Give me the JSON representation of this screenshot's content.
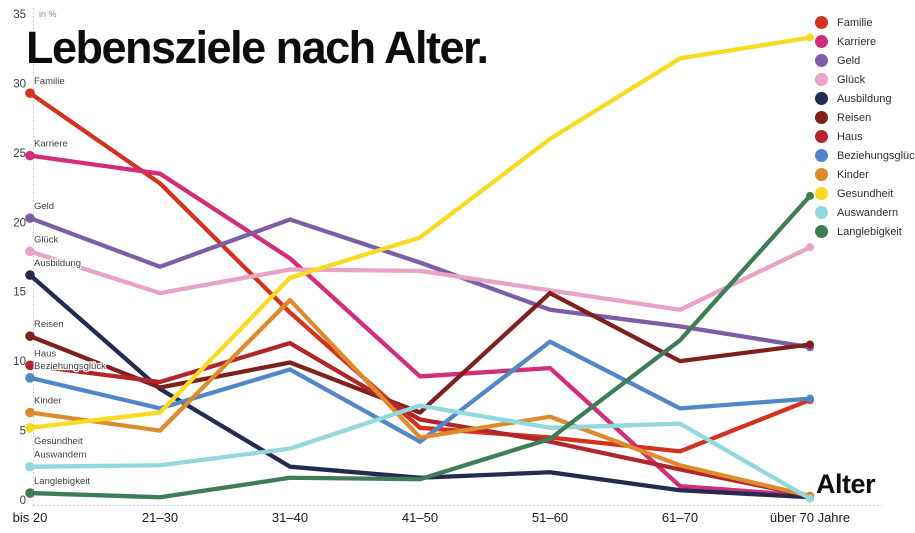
{
  "title": "Lebensziele nach Alter.",
  "chart_data": {
    "type": "line",
    "title": "Lebensziele nach Alter.",
    "ylabel": "in %",
    "xlabel": "Alter",
    "ylim": [
      0,
      35
    ],
    "y_ticks": [
      0,
      5,
      10,
      15,
      20,
      25,
      30,
      35
    ],
    "grid": false,
    "legend_position": "top-right",
    "categories": [
      "bis 20",
      "21–30",
      "31–40",
      "41–50",
      "51–60",
      "61–70",
      "über 70 Jahre"
    ],
    "series": [
      {
        "name": "Familie",
        "color": "#d2321e",
        "label_position": "above",
        "values": [
          29.3,
          22.8,
          13.5,
          5.2,
          4.5,
          3.5,
          7.2
        ]
      },
      {
        "name": "Karriere",
        "color": "#d12d79",
        "label_position": "above",
        "values": [
          24.8,
          23.5,
          17.4,
          8.9,
          9.5,
          1.0,
          0.3
        ]
      },
      {
        "name": "Geld",
        "color": "#7d5ea6",
        "label_position": "above",
        "values": [
          20.3,
          16.8,
          20.2,
          17.1,
          13.7,
          12.5,
          11.0
        ]
      },
      {
        "name": "Glück",
        "color": "#e8a3c6",
        "label_position": "above",
        "values": [
          17.9,
          14.9,
          16.6,
          16.5,
          15.1,
          13.7,
          18.2
        ]
      },
      {
        "name": "Ausbildung",
        "color": "#252a52",
        "label_position": "above",
        "values": [
          16.2,
          8.0,
          2.4,
          1.6,
          2.0,
          0.7,
          0.2
        ]
      },
      {
        "name": "Reisen",
        "color": "#7e211c",
        "label_position": "above",
        "values": [
          11.8,
          8.1,
          9.9,
          6.3,
          14.9,
          10.0,
          11.2
        ]
      },
      {
        "name": "Haus",
        "color": "#b2262b",
        "label_position": "above",
        "values": [
          9.7,
          8.5,
          11.3,
          5.8,
          4.2,
          2.2,
          0.3
        ]
      },
      {
        "name": "Beziehungsglück",
        "color": "#5187c6",
        "label_position": "above",
        "values": [
          8.8,
          6.6,
          9.4,
          4.2,
          11.4,
          6.6,
          7.3
        ]
      },
      {
        "name": "Kinder",
        "color": "#dc8c2d",
        "label_position": "above",
        "values": [
          6.3,
          5.0,
          14.4,
          4.5,
          6.0,
          2.5,
          0.3
        ]
      },
      {
        "name": "Gesundheit",
        "color": "#f7da21",
        "label_position": "below",
        "values": [
          5.2,
          6.3,
          16.0,
          18.9,
          26.0,
          31.8,
          33.3
        ]
      },
      {
        "name": "Auswandern",
        "color": "#92d8dd",
        "label_position": "above",
        "values": [
          2.4,
          2.5,
          3.7,
          6.8,
          5.2,
          5.5,
          0.1
        ]
      },
      {
        "name": "Langlebigkeit",
        "color": "#3e7d57",
        "label_position": "above",
        "values": [
          0.5,
          0.2,
          1.6,
          1.5,
          4.4,
          11.5,
          21.9
        ]
      }
    ]
  }
}
